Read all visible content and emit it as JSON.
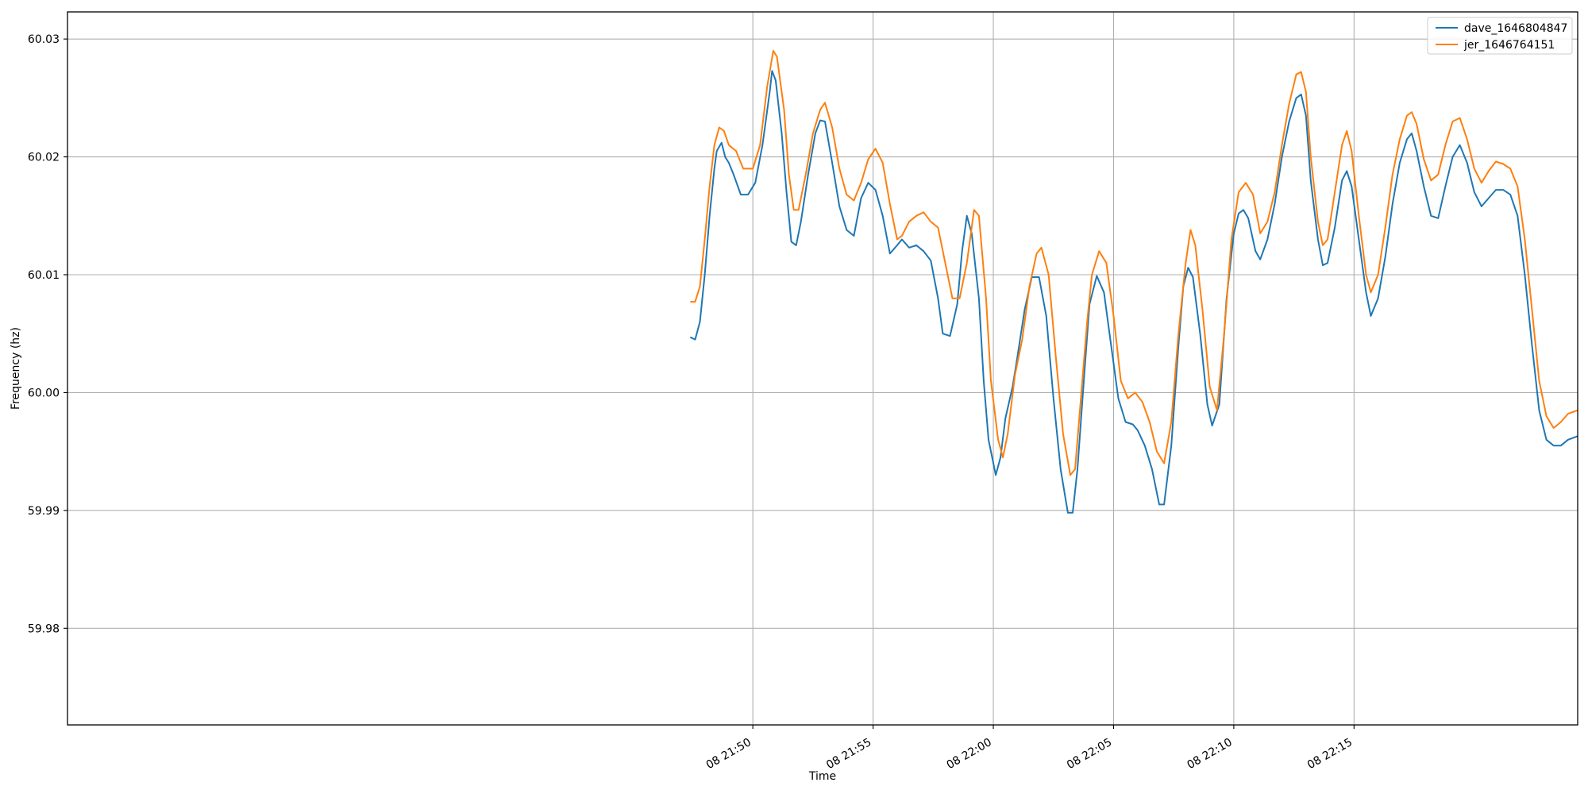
{
  "chart_data": {
    "type": "line",
    "title": "",
    "xlabel": "Time",
    "ylabel": "Frequency (hz)",
    "grid": true,
    "legend_position": "top-right",
    "x_unit": "minutes past 21:00 on the 8th",
    "xlim": [
      21.5,
      84.3
    ],
    "ylim": [
      59.9718,
      60.0323
    ],
    "x_ticks": [
      {
        "value": 50,
        "label": "08 21:50"
      },
      {
        "value": 55,
        "label": "08 21:55"
      },
      {
        "value": 60,
        "label": "08 22:00"
      },
      {
        "value": 65,
        "label": "08 22:05"
      },
      {
        "value": 70,
        "label": "08 22:10"
      },
      {
        "value": 75,
        "label": "08 22:15"
      }
    ],
    "y_ticks": [
      {
        "value": 59.98,
        "label": "59.98"
      },
      {
        "value": 59.99,
        "label": "59.99"
      },
      {
        "value": 60.0,
        "label": "60.00"
      },
      {
        "value": 60.01,
        "label": "60.01"
      },
      {
        "value": 60.02,
        "label": "60.02"
      },
      {
        "value": 60.03,
        "label": "60.03"
      }
    ],
    "series": [
      {
        "name": "dave_1646804847",
        "color": "#1f77b4",
        "points": [
          [
            47.4,
            60.0047
          ],
          [
            47.6,
            60.0045
          ],
          [
            47.8,
            60.006
          ],
          [
            48.0,
            60.01
          ],
          [
            48.2,
            60.015
          ],
          [
            48.4,
            60.019
          ],
          [
            48.5,
            60.0205
          ],
          [
            48.7,
            60.0212
          ],
          [
            48.85,
            60.02
          ],
          [
            49.0,
            60.0195
          ],
          [
            49.2,
            60.0185
          ],
          [
            49.5,
            60.0168
          ],
          [
            49.8,
            60.0168
          ],
          [
            50.1,
            60.0178
          ],
          [
            50.4,
            60.021
          ],
          [
            50.7,
            60.0255
          ],
          [
            50.8,
            60.0273
          ],
          [
            50.95,
            60.0265
          ],
          [
            51.2,
            60.022
          ],
          [
            51.4,
            60.017
          ],
          [
            51.6,
            60.0128
          ],
          [
            51.8,
            60.0125
          ],
          [
            52.0,
            60.0145
          ],
          [
            52.3,
            60.0185
          ],
          [
            52.6,
            60.022
          ],
          [
            52.8,
            60.0231
          ],
          [
            53.0,
            60.023
          ],
          [
            53.3,
            60.0195
          ],
          [
            53.6,
            60.0158
          ],
          [
            53.9,
            60.0138
          ],
          [
            54.2,
            60.0133
          ],
          [
            54.5,
            60.0165
          ],
          [
            54.8,
            60.0178
          ],
          [
            55.1,
            60.0172
          ],
          [
            55.4,
            60.015
          ],
          [
            55.7,
            60.0118
          ],
          [
            56.0,
            60.0125
          ],
          [
            56.2,
            60.013
          ],
          [
            56.5,
            60.0123
          ],
          [
            56.8,
            60.0125
          ],
          [
            57.1,
            60.012
          ],
          [
            57.4,
            60.0112
          ],
          [
            57.7,
            60.008
          ],
          [
            57.9,
            60.005
          ],
          [
            58.2,
            60.0048
          ],
          [
            58.5,
            60.0075
          ],
          [
            58.7,
            60.012
          ],
          [
            58.9,
            60.015
          ],
          [
            59.1,
            60.0135
          ],
          [
            59.4,
            60.008
          ],
          [
            59.6,
            60.001
          ],
          [
            59.8,
            59.996
          ],
          [
            60.1,
            59.993
          ],
          [
            60.3,
            59.9945
          ],
          [
            60.5,
            59.9978
          ],
          [
            60.8,
            60.0005
          ],
          [
            61.0,
            60.003
          ],
          [
            61.3,
            60.007
          ],
          [
            61.6,
            60.0098
          ],
          [
            61.9,
            60.0098
          ],
          [
            62.2,
            60.0065
          ],
          [
            62.5,
            59.9995
          ],
          [
            62.8,
            59.9935
          ],
          [
            63.1,
            59.9898
          ],
          [
            63.3,
            59.9898
          ],
          [
            63.5,
            59.9935
          ],
          [
            63.8,
            60.002
          ],
          [
            64.0,
            60.0075
          ],
          [
            64.3,
            60.0099
          ],
          [
            64.6,
            60.0085
          ],
          [
            64.9,
            60.004
          ],
          [
            65.2,
            59.9995
          ],
          [
            65.5,
            59.9975
          ],
          [
            65.8,
            59.9973
          ],
          [
            66.0,
            59.9968
          ],
          [
            66.3,
            59.9955
          ],
          [
            66.6,
            59.9935
          ],
          [
            66.9,
            59.9905
          ],
          [
            67.1,
            59.9905
          ],
          [
            67.4,
            59.9955
          ],
          [
            67.7,
            60.004
          ],
          [
            67.9,
            60.009
          ],
          [
            68.1,
            60.0106
          ],
          [
            68.3,
            60.0098
          ],
          [
            68.6,
            60.005
          ],
          [
            68.9,
            59.999
          ],
          [
            69.1,
            59.9972
          ],
          [
            69.4,
            59.999
          ],
          [
            69.7,
            60.008
          ],
          [
            70.0,
            60.0135
          ],
          [
            70.2,
            60.0152
          ],
          [
            70.4,
            60.0155
          ],
          [
            70.6,
            60.0148
          ],
          [
            70.9,
            60.012
          ],
          [
            71.1,
            60.0113
          ],
          [
            71.4,
            60.013
          ],
          [
            71.7,
            60.016
          ],
          [
            72.0,
            60.02
          ],
          [
            72.3,
            60.023
          ],
          [
            72.6,
            60.025
          ],
          [
            72.8,
            60.0253
          ],
          [
            73.0,
            60.0235
          ],
          [
            73.2,
            60.018
          ],
          [
            73.5,
            60.013
          ],
          [
            73.7,
            60.0108
          ],
          [
            73.9,
            60.011
          ],
          [
            74.2,
            60.014
          ],
          [
            74.5,
            60.018
          ],
          [
            74.7,
            60.0188
          ],
          [
            74.9,
            60.0175
          ],
          [
            75.2,
            60.013
          ],
          [
            75.5,
            60.0085
          ],
          [
            75.7,
            60.0065
          ],
          [
            76.0,
            60.008
          ],
          [
            76.3,
            60.0115
          ],
          [
            76.6,
            60.016
          ],
          [
            76.9,
            60.0195
          ],
          [
            77.2,
            60.0215
          ],
          [
            77.4,
            60.022
          ],
          [
            77.6,
            60.0205
          ],
          [
            77.9,
            60.0175
          ],
          [
            78.2,
            60.015
          ],
          [
            78.5,
            60.0148
          ],
          [
            78.8,
            60.0175
          ],
          [
            79.1,
            60.02
          ],
          [
            79.4,
            60.021
          ],
          [
            79.7,
            60.0195
          ],
          [
            80.0,
            60.017
          ],
          [
            80.3,
            60.0158
          ],
          [
            80.6,
            60.0165
          ],
          [
            80.9,
            60.0172
          ],
          [
            81.2,
            60.0172
          ],
          [
            81.5,
            60.0168
          ],
          [
            81.8,
            60.015
          ],
          [
            82.1,
            60.01
          ],
          [
            82.4,
            60.004
          ],
          [
            82.7,
            59.9985
          ],
          [
            83.0,
            59.996
          ],
          [
            83.3,
            59.9955
          ],
          [
            83.6,
            59.9955
          ],
          [
            83.9,
            59.996
          ],
          [
            84.3,
            59.9963
          ]
        ]
      },
      {
        "name": "jer_1646764151",
        "color": "#ff7f0e",
        "points": [
          [
            47.4,
            60.0077
          ],
          [
            47.6,
            60.0077
          ],
          [
            47.8,
            60.009
          ],
          [
            48.0,
            60.013
          ],
          [
            48.2,
            60.0175
          ],
          [
            48.4,
            60.021
          ],
          [
            48.6,
            60.0225
          ],
          [
            48.8,
            60.0222
          ],
          [
            49.0,
            60.021
          ],
          [
            49.3,
            60.0205
          ],
          [
            49.6,
            60.019
          ],
          [
            50.0,
            60.019
          ],
          [
            50.3,
            60.021
          ],
          [
            50.6,
            60.026
          ],
          [
            50.85,
            60.029
          ],
          [
            51.0,
            60.0285
          ],
          [
            51.3,
            60.024
          ],
          [
            51.5,
            60.0185
          ],
          [
            51.7,
            60.0155
          ],
          [
            51.9,
            60.0155
          ],
          [
            52.2,
            60.0185
          ],
          [
            52.5,
            60.022
          ],
          [
            52.8,
            60.024
          ],
          [
            53.0,
            60.0246
          ],
          [
            53.3,
            60.0225
          ],
          [
            53.6,
            60.019
          ],
          [
            53.9,
            60.0168
          ],
          [
            54.2,
            60.0163
          ],
          [
            54.5,
            60.0178
          ],
          [
            54.8,
            60.0198
          ],
          [
            55.1,
            60.0207
          ],
          [
            55.4,
            60.0195
          ],
          [
            55.7,
            60.016
          ],
          [
            56.0,
            60.013
          ],
          [
            56.2,
            60.0133
          ],
          [
            56.5,
            60.0145
          ],
          [
            56.8,
            60.015
          ],
          [
            57.1,
            60.0153
          ],
          [
            57.4,
            60.0145
          ],
          [
            57.7,
            60.014
          ],
          [
            58.0,
            60.011
          ],
          [
            58.3,
            60.008
          ],
          [
            58.6,
            60.008
          ],
          [
            58.9,
            60.011
          ],
          [
            59.2,
            60.0155
          ],
          [
            59.4,
            60.015
          ],
          [
            59.7,
            60.008
          ],
          [
            59.9,
            60.001
          ],
          [
            60.2,
            59.996
          ],
          [
            60.4,
            59.9945
          ],
          [
            60.6,
            59.9965
          ],
          [
            60.9,
            60.0015
          ],
          [
            61.2,
            60.0045
          ],
          [
            61.5,
            60.009
          ],
          [
            61.8,
            60.0118
          ],
          [
            62.0,
            60.0123
          ],
          [
            62.3,
            60.01
          ],
          [
            62.6,
            60.003
          ],
          [
            62.9,
            59.9965
          ],
          [
            63.2,
            59.993
          ],
          [
            63.4,
            59.9935
          ],
          [
            63.6,
            59.9985
          ],
          [
            63.9,
            60.006
          ],
          [
            64.1,
            60.01
          ],
          [
            64.4,
            60.012
          ],
          [
            64.7,
            60.011
          ],
          [
            65.0,
            60.0065
          ],
          [
            65.3,
            60.001
          ],
          [
            65.6,
            59.9995
          ],
          [
            65.9,
            60.0
          ],
          [
            66.2,
            59.9992
          ],
          [
            66.5,
            59.9975
          ],
          [
            66.8,
            59.995
          ],
          [
            67.1,
            59.994
          ],
          [
            67.4,
            59.9975
          ],
          [
            67.7,
            60.005
          ],
          [
            68.0,
            60.011
          ],
          [
            68.2,
            60.0138
          ],
          [
            68.4,
            60.0125
          ],
          [
            68.7,
            60.007
          ],
          [
            69.0,
            60.0005
          ],
          [
            69.3,
            59.9985
          ],
          [
            69.6,
            60.005
          ],
          [
            69.9,
            60.013
          ],
          [
            70.2,
            60.017
          ],
          [
            70.5,
            60.0178
          ],
          [
            70.8,
            60.0168
          ],
          [
            71.1,
            60.0135
          ],
          [
            71.4,
            60.0145
          ],
          [
            71.7,
            60.017
          ],
          [
            72.0,
            60.021
          ],
          [
            72.3,
            60.0245
          ],
          [
            72.6,
            60.027
          ],
          [
            72.8,
            60.0272
          ],
          [
            73.0,
            60.0255
          ],
          [
            73.2,
            60.02
          ],
          [
            73.5,
            60.0145
          ],
          [
            73.7,
            60.0125
          ],
          [
            73.9,
            60.013
          ],
          [
            74.2,
            60.017
          ],
          [
            74.5,
            60.021
          ],
          [
            74.7,
            60.0222
          ],
          [
            74.9,
            60.0205
          ],
          [
            75.2,
            60.015
          ],
          [
            75.5,
            60.01
          ],
          [
            75.7,
            60.0085
          ],
          [
            76.0,
            60.01
          ],
          [
            76.3,
            60.014
          ],
          [
            76.6,
            60.0185
          ],
          [
            76.9,
            60.0215
          ],
          [
            77.2,
            60.0235
          ],
          [
            77.4,
            60.0238
          ],
          [
            77.6,
            60.0228
          ],
          [
            77.9,
            60.0198
          ],
          [
            78.2,
            60.018
          ],
          [
            78.5,
            60.0185
          ],
          [
            78.8,
            60.021
          ],
          [
            79.1,
            60.023
          ],
          [
            79.4,
            60.0233
          ],
          [
            79.7,
            60.0215
          ],
          [
            80.0,
            60.019
          ],
          [
            80.3,
            60.0178
          ],
          [
            80.6,
            60.0188
          ],
          [
            80.9,
            60.0196
          ],
          [
            81.2,
            60.0194
          ],
          [
            81.5,
            60.019
          ],
          [
            81.8,
            60.0175
          ],
          [
            82.1,
            60.013
          ],
          [
            82.4,
            60.007
          ],
          [
            82.7,
            60.001
          ],
          [
            83.0,
            59.998
          ],
          [
            83.3,
            59.997
          ],
          [
            83.6,
            59.9975
          ],
          [
            83.9,
            59.9982
          ],
          [
            84.3,
            59.9985
          ]
        ]
      }
    ]
  }
}
